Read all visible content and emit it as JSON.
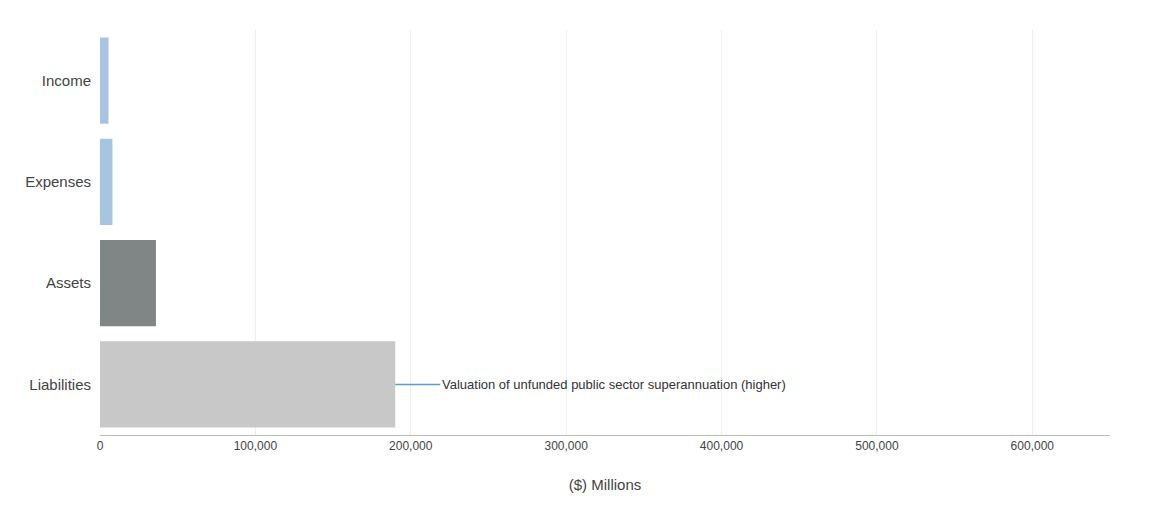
{
  "chart_data": {
    "type": "bar",
    "orientation": "horizontal",
    "categories": [
      "Income",
      "Expenses",
      "Assets",
      "Liabilities"
    ],
    "values": [
      5500,
      8000,
      36000,
      190000
    ],
    "colors": [
      "#a8c4e0",
      "#a8c4e0",
      "#808585",
      "#c8c8c8"
    ],
    "xlabel": "($) Millions",
    "annotation": "Valuation of unfunded public sector superannuation (higher)",
    "xlim": [
      0,
      650000
    ],
    "xticks": [
      0,
      {
        "value": 100000,
        "label": "100,000"
      },
      {
        "value": 200000,
        "label": "200,000"
      },
      {
        "value": 300000,
        "label": "300,000"
      },
      {
        "value": 400000,
        "label": "400,000"
      },
      {
        "value": 500000,
        "label": "500,000"
      },
      {
        "value": 600000,
        "label": "600,000"
      }
    ],
    "grid": true
  }
}
